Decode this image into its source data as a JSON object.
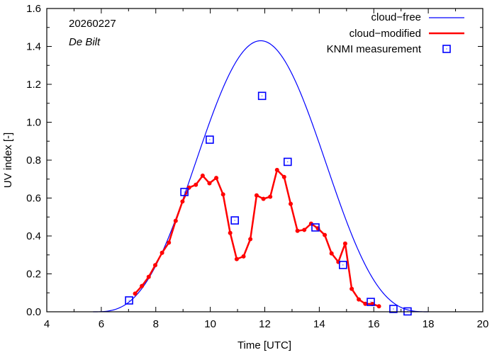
{
  "chart_data": {
    "type": "line",
    "title": "",
    "annotations": [
      "20260227",
      "De Bilt"
    ],
    "xlabel": "Time  [UTC]",
    "ylabel": "UV index  [-]",
    "xlim": [
      4,
      20
    ],
    "ylim": [
      0,
      1.6
    ],
    "xticks": [
      4,
      6,
      8,
      10,
      12,
      14,
      16,
      18,
      20
    ],
    "xtick_labels": [
      "4",
      "6",
      "8",
      "10",
      "12",
      "14",
      "16",
      "18",
      "20"
    ],
    "yticks": [
      0.0,
      0.2,
      0.4,
      0.6,
      0.8,
      1.0,
      1.2,
      1.4,
      1.6
    ],
    "ytick_labels": [
      "0.0",
      "0.2",
      "0.4",
      "0.6",
      "0.8",
      "1.0",
      "1.2",
      "1.4",
      "1.6"
    ],
    "grid": false,
    "legend_position": "top-right",
    "series": [
      {
        "name": "cloud−free",
        "type": "line",
        "color": "#0000ff",
        "model": {
          "start": 5.7,
          "end": 18.0,
          "peak": 1.43,
          "exponent": 3.0
        }
      },
      {
        "name": "cloud−modified",
        "type": "line",
        "color": "#ff0000",
        "x": [
          7.24,
          7.49,
          7.74,
          7.98,
          8.23,
          8.48,
          8.73,
          8.98,
          9.22,
          9.47,
          9.72,
          9.97,
          10.22,
          10.47,
          10.73,
          10.97,
          11.22,
          11.47,
          11.7,
          11.95,
          12.2,
          12.45,
          12.71,
          12.95,
          13.2,
          13.45,
          13.7,
          13.95,
          14.2,
          14.45,
          14.7,
          14.95,
          15.19,
          15.45,
          15.69,
          15.95,
          16.19
        ],
        "y": [
          0.096,
          0.136,
          0.184,
          0.246,
          0.311,
          0.365,
          0.48,
          0.582,
          0.655,
          0.67,
          0.718,
          0.678,
          0.706,
          0.619,
          0.416,
          0.278,
          0.292,
          0.383,
          0.614,
          0.596,
          0.607,
          0.748,
          0.711,
          0.569,
          0.427,
          0.432,
          0.465,
          0.44,
          0.405,
          0.308,
          0.263,
          0.36,
          0.121,
          0.065,
          0.042,
          0.041,
          0.029
        ]
      },
      {
        "name": "KNMI measurement",
        "type": "scatter",
        "color": "#0000ff",
        "x": [
          7.02,
          9.05,
          9.98,
          10.9,
          11.9,
          12.84,
          13.86,
          14.87,
          15.89,
          16.72,
          17.24
        ],
        "y": [
          0.06,
          0.632,
          0.908,
          0.482,
          1.139,
          0.791,
          0.445,
          0.247,
          0.052,
          0.015,
          0.002
        ]
      }
    ]
  }
}
